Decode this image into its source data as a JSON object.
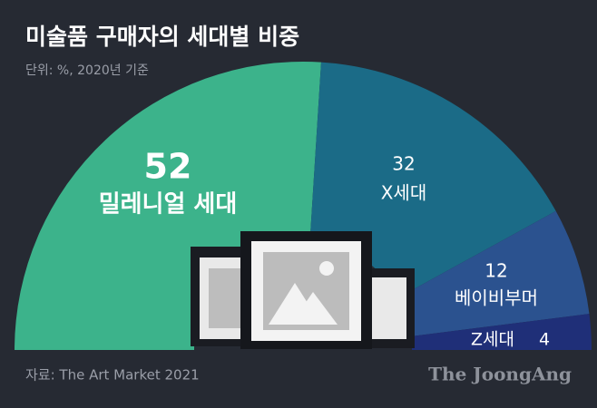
{
  "chart_data": {
    "type": "half-donut",
    "title": "미술품 구매자의 세대별 비중",
    "subtitle": "단위: %, 2020년 기준",
    "categories": [
      "밀레니얼 세대",
      "X세대",
      "베이비부머",
      "Z세대"
    ],
    "values": [
      52,
      32,
      12,
      4
    ],
    "colors": [
      "#3cb38b",
      "#1b6b87",
      "#2b528f",
      "#1f2f78"
    ],
    "source": "자료: The Art Market 2021",
    "logo": "The JoongAng"
  }
}
